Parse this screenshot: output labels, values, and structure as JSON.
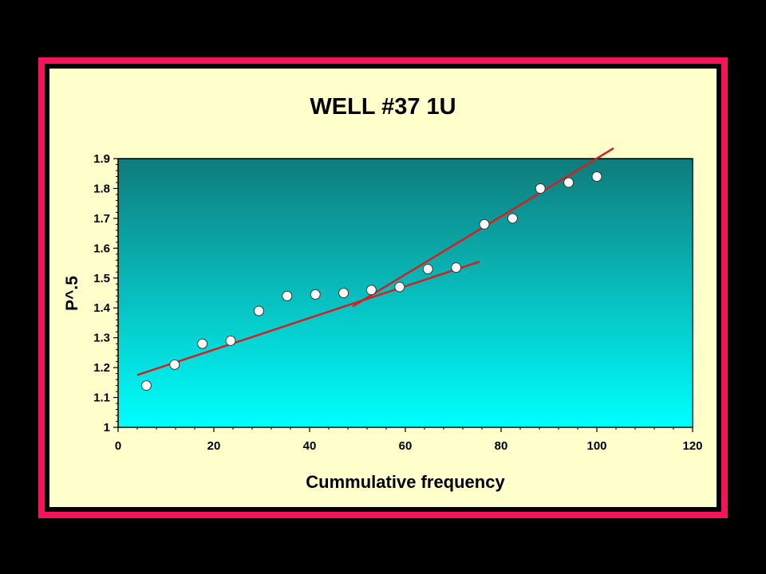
{
  "chart_data": {
    "type": "scatter",
    "title": "WELL #37 1U",
    "xlabel": "Cummulative frequency",
    "ylabel": "P^.5",
    "xlim": [
      0,
      120
    ],
    "ylim": [
      1,
      1.9
    ],
    "xticks": [
      "0",
      "20",
      "40",
      "60",
      "80",
      "100",
      "120"
    ],
    "yticks": [
      "1",
      "1.1",
      "1.2",
      "1.3",
      "1.4",
      "1.5",
      "1.6",
      "1.7",
      "1.8",
      "1.9"
    ],
    "points": {
      "x": [
        5.9,
        11.8,
        17.6,
        23.5,
        29.4,
        35.3,
        41.2,
        47.1,
        52.9,
        58.8,
        64.7,
        70.6,
        76.5,
        82.4,
        88.2,
        94.1,
        100
      ],
      "y": [
        1.14,
        1.21,
        1.28,
        1.29,
        1.39,
        1.44,
        1.445,
        1.45,
        1.46,
        1.47,
        1.53,
        1.535,
        1.68,
        1.7,
        1.8,
        1.82,
        1.84
      ]
    },
    "lines": [
      {
        "x": [
          4,
          75.5
        ],
        "y": [
          1.175,
          1.555
        ]
      },
      {
        "x": [
          49,
          103.5
        ],
        "y": [
          1.405,
          1.935
        ]
      }
    ],
    "colors": {
      "plot_top": "#0f7b7b",
      "plot_bottom": "#00ffff",
      "line": "#d42020",
      "marker_fill": "#ffffff",
      "frame": "#f5145a",
      "background": "#ffffcc"
    },
    "grid": false,
    "legend": "none"
  }
}
